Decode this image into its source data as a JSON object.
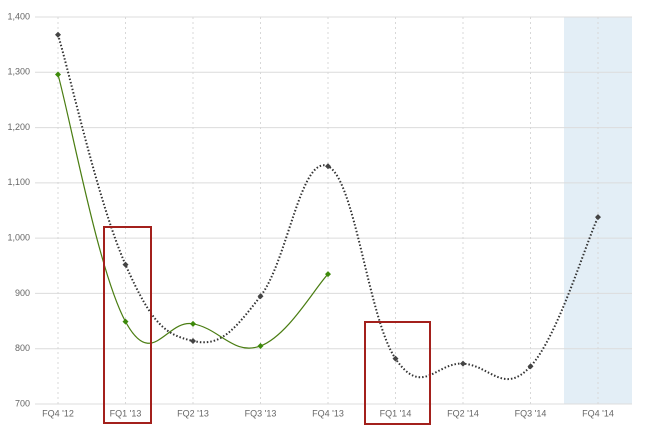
{
  "chart_data": {
    "type": "line",
    "categories": [
      "FQ4 '12",
      "FQ1 '13",
      "FQ2 '13",
      "FQ3 '13",
      "FQ4 '13",
      "FQ1 '14",
      "FQ2 '14",
      "FQ3 '14",
      "FQ4 '14"
    ],
    "series": [
      {
        "color": "#333333",
        "values": [
          1368,
          952,
          814,
          895,
          1130,
          782,
          773,
          768,
          1038
        ]
      },
      {
        "color": "#4a7d12",
        "values": [
          1296,
          849,
          845,
          805,
          935,
          null,
          null,
          null,
          null
        ]
      }
    ],
    "ylim": [
      700,
      1400
    ],
    "yticks": [
      700,
      800,
      900,
      {
        "value": 1000,
        "label": "1,000"
      },
      {
        "value": 1100,
        "label": "1,100"
      },
      {
        "value": 1200,
        "label": "1,200"
      },
      {
        "value": 1300,
        "label": "1,300"
      },
      {
        "value": 1400,
        "label": "1,400"
      }
    ],
    "grid": true
  }
}
